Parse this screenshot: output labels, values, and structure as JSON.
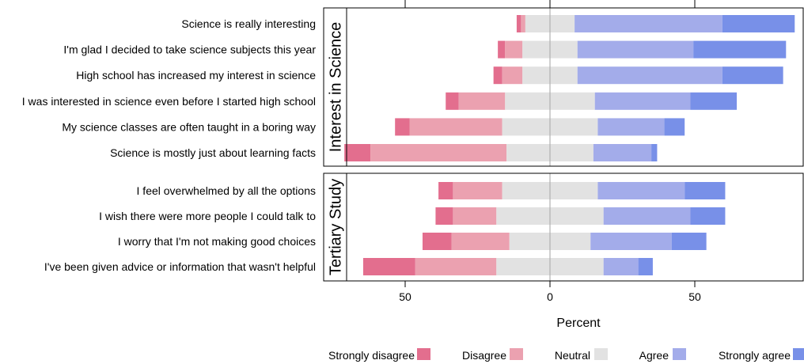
{
  "chart_data": {
    "type": "bar",
    "subtype": "diverging-stacked-likert",
    "orientation": "horizontal",
    "xlabel": "Percent",
    "x_ticks": [
      {
        "value": -50,
        "label": "50"
      },
      {
        "value": 0,
        "label": "0"
      },
      {
        "value": 50,
        "label": "50"
      }
    ],
    "xlim": [
      -71,
      87
    ],
    "center_line": 0,
    "grid": false,
    "legend_position": "bottom",
    "categories_legend": [
      {
        "name": "Strongly disagree",
        "color": "#e36e8e"
      },
      {
        "name": "Disagree",
        "color": "#eba1b0"
      },
      {
        "name": "Neutral",
        "color": "#e2e2e2"
      },
      {
        "name": "Agree",
        "color": "#a3acea"
      },
      {
        "name": "Strongly agree",
        "color": "#7890e8"
      }
    ],
    "panels": [
      {
        "strip": "Interest in Science",
        "items": [
          {
            "label": "Science is really interesting",
            "sd": 1.5,
            "d": 1.5,
            "n": 17,
            "a": 51,
            "sa": 25
          },
          {
            "label": "I'm glad I decided to take science subjects this year",
            "sd": 2.5,
            "d": 6,
            "n": 19,
            "a": 40,
            "sa": 32
          },
          {
            "label": "High school has increased my interest in science",
            "sd": 3,
            "d": 7,
            "n": 19,
            "a": 50,
            "sa": 21
          },
          {
            "label": "I was interested in science even before I started high school",
            "sd": 4.5,
            "d": 16,
            "n": 31,
            "a": 33,
            "sa": 16
          },
          {
            "label": "My science classes are often taught in a boring way",
            "sd": 5,
            "d": 32,
            "n": 33,
            "a": 23,
            "sa": 7
          },
          {
            "label": "Science is mostly just about learning facts",
            "sd": 9,
            "d": 47,
            "n": 30,
            "a": 20,
            "sa": 2
          }
        ]
      },
      {
        "strip": "Tertiary Study",
        "items": [
          {
            "label": "I feel overwhelmed by all the options",
            "sd": 5,
            "d": 17,
            "n": 33,
            "a": 30,
            "sa": 14
          },
          {
            "label": "I wish there were more people I could talk to",
            "sd": 6,
            "d": 15,
            "n": 37,
            "a": 30,
            "sa": 12
          },
          {
            "label": "I worry that I'm not making good choices",
            "sd": 10,
            "d": 20,
            "n": 28,
            "a": 28,
            "sa": 12
          },
          {
            "label": "I've been given advice or information that wasn't helpful",
            "sd": 18,
            "d": 28,
            "n": 37,
            "a": 12,
            "sa": 5
          }
        ]
      }
    ]
  }
}
